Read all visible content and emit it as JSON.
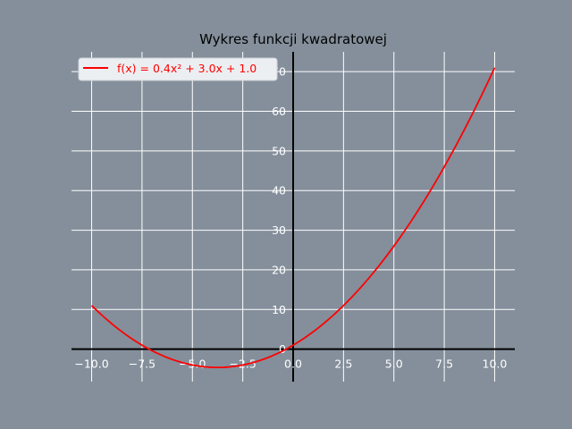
{
  "chart_data": {
    "type": "line",
    "title": "Wykres funkcji kwadratowej",
    "xlabel": "",
    "ylabel": "",
    "xlim": [
      -11,
      11
    ],
    "ylim": [
      -8.2,
      75
    ],
    "grid": true,
    "legend_position": "top-left",
    "x_ticks": [
      "−10.0",
      "−7.5",
      "−5.0",
      "−2.5",
      "0.0",
      "2.5",
      "5.0",
      "7.5",
      "10.0"
    ],
    "x_tick_values": [
      -10,
      -7.5,
      -5,
      -2.5,
      0,
      2.5,
      5,
      7.5,
      10
    ],
    "y_ticks": [
      "0",
      "10",
      "20",
      "30",
      "40",
      "50",
      "60",
      "70"
    ],
    "y_tick_values": [
      0,
      10,
      20,
      30,
      40,
      50,
      60,
      70
    ],
    "series": [
      {
        "name": "f(x) = 0.4x² + 3.0x + 1.0",
        "color": "#ff0000",
        "coefficients": {
          "a": 0.4,
          "b": 3.0,
          "c": 1.0
        },
        "x_range": [
          -10,
          10
        ],
        "x": [
          -10,
          -9,
          -8,
          -7,
          -6,
          -5,
          -4,
          -3,
          -2,
          -1,
          0,
          1,
          2,
          3,
          4,
          5,
          6,
          7,
          8,
          9,
          10
        ],
        "y": [
          11,
          6.4,
          2.6,
          -0.4,
          -2.6,
          -4,
          -4.6,
          -4.4,
          -3.4,
          -1.6,
          1,
          4.4,
          8.6,
          13.6,
          19.4,
          26,
          33.4,
          41.6,
          50.6,
          60.4,
          71
        ]
      }
    ]
  },
  "colors": {
    "background": "#848f9b",
    "grid": "#ffffff",
    "axes": "#000000",
    "line": "#ff0000"
  }
}
